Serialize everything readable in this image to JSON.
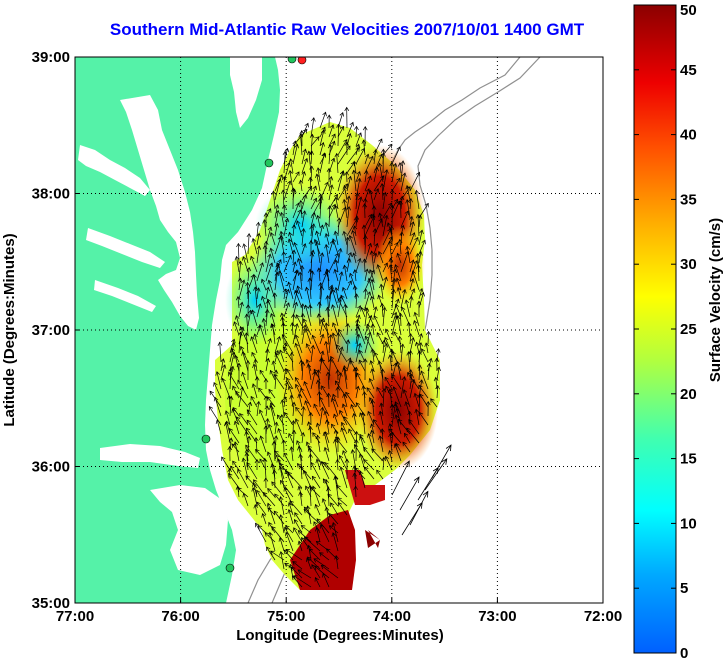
{
  "title": "Southern Mid-Atlantic Raw Velocities 2007/10/01 1400 GMT",
  "map": {
    "x_axis": {
      "label": "Longitude (Degrees:Minutes)",
      "ticks": [
        "77:00",
        "76:00",
        "75:00",
        "74:00",
        "73:00",
        "72:00"
      ],
      "range": [
        -77,
        -72
      ]
    },
    "y_axis": {
      "label": "Latitude (Degrees:Minutes)",
      "ticks": [
        "35:00",
        "36:00",
        "37:00",
        "38:00",
        "39:00"
      ],
      "range": [
        35,
        39
      ]
    },
    "grid": "dotted",
    "land_color": "#55f2a8",
    "water_color": "#ffffff",
    "bathymetry_color": "#909090",
    "vector_color": "#000000",
    "hf_radar_sites": [
      {
        "color": "#22c55e"
      },
      {
        "color": "#22c55e"
      },
      {
        "color": "#22c55e"
      },
      {
        "color": "#22c55e"
      },
      {
        "color": "#ff2020"
      }
    ]
  },
  "colorbar": {
    "label": "Surface Velocity (cm/s)",
    "ticks": [
      "0",
      "5",
      "10",
      "15",
      "20",
      "25",
      "30",
      "35",
      "40",
      "45",
      "50"
    ],
    "range": [
      0,
      50
    ],
    "colormap": "jet"
  }
}
